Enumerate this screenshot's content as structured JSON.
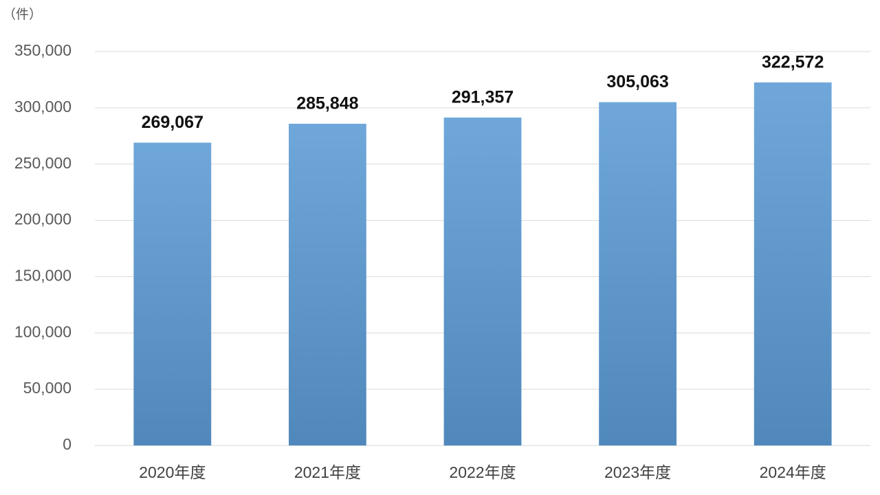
{
  "chart_data": {
    "type": "bar",
    "y_label": "（件）",
    "categories": [
      "2020年度",
      "2021年度",
      "2022年度",
      "2023年度",
      "2024年度"
    ],
    "values": [
      269067,
      285848,
      291357,
      305063,
      322572
    ],
    "value_labels": [
      "269,067",
      "285,848",
      "291,357",
      "305,063",
      "322,572"
    ],
    "color": "#5b9bd5",
    "ylim": [
      0,
      350000
    ],
    "yticks": [
      0,
      {
        "value": 50000,
        "label": "50,000"
      },
      {
        "value": 100000,
        "label": "100,000"
      },
      {
        "value": 150000,
        "label": "150,000"
      },
      {
        "value": 200000,
        "label": "200,000"
      },
      {
        "value": 250000,
        "label": "250,000"
      },
      {
        "value": 300000,
        "label": "300,000"
      },
      {
        "value": 350000,
        "label": "350,000"
      }
    ],
    "grid": true
  }
}
